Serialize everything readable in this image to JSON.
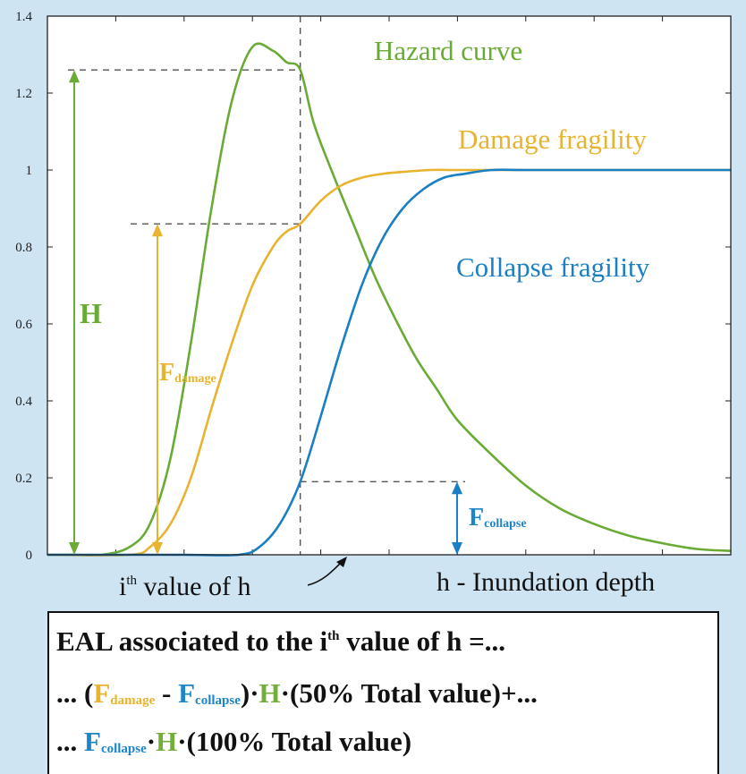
{
  "colors": {
    "hazard": "#6aab35",
    "damage": "#e8b32f",
    "collapse": "#1b7fc4",
    "dashed": "#555555"
  },
  "chart_data": {
    "type": "line",
    "xlabel": "h - Inundation depth",
    "x_marker_label_main": "i",
    "x_marker_label_sup": "th",
    "x_marker_label_tail": " value of h",
    "xlim": [
      0,
      10
    ],
    "ylim": [
      0,
      1.4
    ],
    "yticks": [
      "0",
      "0.2",
      "0.4",
      "0.6",
      "0.8",
      "1",
      "1.2",
      "1.4"
    ],
    "ytick_values": [
      0,
      0.2,
      0.4,
      0.6,
      0.8,
      1.0,
      1.2,
      1.4
    ],
    "grid": false,
    "marker_x": 3.7,
    "series": [
      {
        "name": "Hazard curve",
        "color": "#6aab35",
        "x": [
          0.0,
          0.4,
          0.8,
          1.2,
          1.5,
          1.8,
          2.1,
          2.4,
          2.7,
          3.0,
          3.3,
          3.5,
          3.7,
          3.9,
          4.2,
          4.5,
          4.8,
          5.1,
          5.4,
          5.7,
          6.0,
          6.5,
          7.0,
          7.5,
          8.0,
          8.5,
          9.0,
          9.5,
          10.0
        ],
        "values": [
          0.0,
          0.0,
          0.0,
          0.02,
          0.08,
          0.25,
          0.55,
          0.9,
          1.18,
          1.32,
          1.31,
          1.28,
          1.26,
          1.12,
          0.98,
          0.85,
          0.72,
          0.61,
          0.51,
          0.43,
          0.35,
          0.26,
          0.18,
          0.12,
          0.08,
          0.05,
          0.03,
          0.015,
          0.01
        ]
      },
      {
        "name": "Damage fragility",
        "color": "#e8b32f",
        "x": [
          0.0,
          1.2,
          1.5,
          1.8,
          2.1,
          2.4,
          2.7,
          3.0,
          3.3,
          3.5,
          3.7,
          4.0,
          4.3,
          4.6,
          4.9,
          5.2,
          5.6,
          6.0,
          7.0,
          8.0,
          9.0,
          10.0
        ],
        "values": [
          0.0,
          0.0,
          0.02,
          0.08,
          0.2,
          0.38,
          0.55,
          0.7,
          0.8,
          0.84,
          0.86,
          0.92,
          0.96,
          0.98,
          0.99,
          0.995,
          1.0,
          1.0,
          1.0,
          1.0,
          1.0,
          1.0
        ]
      },
      {
        "name": "Collapse fragility",
        "color": "#1b7fc4",
        "x": [
          0.0,
          1.0,
          2.0,
          2.8,
          3.1,
          3.4,
          3.7,
          4.0,
          4.3,
          4.6,
          4.9,
          5.2,
          5.5,
          5.8,
          6.1,
          6.5,
          7.0,
          8.0,
          9.0,
          10.0
        ],
        "values": [
          0.0,
          0.0,
          0.0,
          0.0,
          0.02,
          0.08,
          0.19,
          0.36,
          0.54,
          0.7,
          0.82,
          0.9,
          0.95,
          0.98,
          0.99,
          1.0,
          1.0,
          1.0,
          1.0,
          1.0
        ]
      }
    ],
    "annotations": {
      "H": "H",
      "F_damage_main": "F",
      "F_damage_sub": "damage",
      "F_collapse_main": "F",
      "F_collapse_sub": "collapse"
    }
  },
  "formula": {
    "line1_a": "EAL associated to the i",
    "line1_sup": "th",
    "line1_b": " value of h =...",
    "line2_a": "... (",
    "line2_f1": "F",
    "line2_f1_sub": "damage",
    "line2_minus": " - ",
    "line2_f2": "F",
    "line2_f2_sub": "collapse",
    "line2_b": ")·",
    "line2_h": "H",
    "line2_c": "·(50% Total value)+...",
    "line3_a": "... ",
    "line3_f": "F",
    "line3_f_sub": "collapse",
    "line3_dot": "·",
    "line3_h": "H",
    "line3_b": "·(100% Total value)"
  }
}
